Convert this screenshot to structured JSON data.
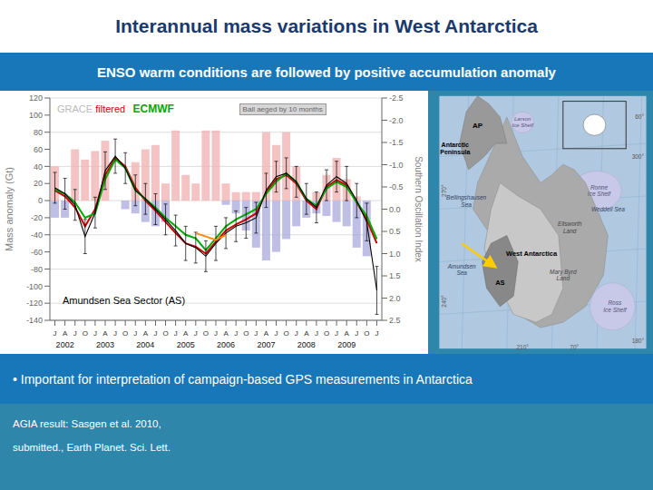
{
  "chart_data": {
    "type": "bar",
    "title": "Interannual mass variations in West Antarctica",
    "subtitle": "ENSO warm conditions are followed by positive accumulation anomaly",
    "bullet_text": "• Important for interpretation of campaign-based GPS measurements in Antarctica",
    "footer": [
      "AGIA result: Sasgen et al. 2010,",
      "submitted., Earth Planet. Sci. Lett."
    ],
    "ylabel": "Mass anomaly (Gt)",
    "y2label": "Southern Oscillation Index",
    "categories": [
      "J",
      "A",
      "J",
      "O",
      "J",
      "A",
      "J",
      "O",
      "J",
      "A",
      "J",
      "O",
      "J",
      "A",
      "J",
      "O",
      "J",
      "A",
      "J",
      "O",
      "J",
      "A",
      "J",
      "O",
      "J",
      "A",
      "J",
      "O",
      "J",
      "A",
      "J",
      "O",
      "J"
    ],
    "category_groups": [
      null,
      "2002",
      null,
      null,
      null,
      "2003",
      null,
      null,
      null,
      "2004",
      null,
      null,
      null,
      "2005",
      null,
      null,
      null,
      "2006",
      null,
      null,
      null,
      "2007",
      null,
      null,
      null,
      "2008",
      null,
      null,
      null,
      "2009",
      null,
      null,
      null
    ],
    "series": [
      {
        "type": "bar",
        "color": "#aaaadd",
        "values": [
          -20,
          -20,
          0,
          0,
          0,
          0,
          0,
          -10,
          -15,
          -25,
          -30,
          -25,
          0,
          0,
          0,
          0,
          0,
          -5,
          -15,
          -35,
          -55,
          -70,
          -60,
          -45,
          -30,
          -20,
          -15,
          -18,
          -25,
          -30,
          -55,
          -65,
          0
        ]
      },
      {
        "type": "bar",
        "color": "#f0b0b0",
        "values": [
          40,
          0,
          60,
          48,
          58,
          70,
          0,
          0,
          45,
          60,
          65,
          20,
          82,
          30,
          20,
          82,
          82,
          20,
          10,
          10,
          10,
          80,
          65,
          80,
          40,
          0,
          10,
          30,
          50,
          25,
          5,
          0,
          0
        ]
      },
      {
        "type": "line",
        "color": "#cc0000",
        "values": [
          12,
          5,
          -8,
          -30,
          -10,
          30,
          50,
          40,
          15,
          0,
          -12,
          -25,
          -38,
          -50,
          -54,
          -62,
          -48,
          -35,
          -28,
          -22,
          -15,
          10,
          25,
          30,
          20,
          0,
          -10,
          16,
          24,
          18,
          -2,
          -22,
          -50
        ]
      },
      {
        "type": "line",
        "color": "#00aa00",
        "values": [
          13,
          8,
          -2,
          -20,
          -15,
          25,
          48,
          38,
          12,
          2,
          -8,
          -20,
          -30,
          -40,
          -44,
          -58,
          -44,
          -30,
          -22,
          -16,
          -10,
          8,
          22,
          32,
          22,
          2,
          -6,
          14,
          22,
          16,
          -2,
          -18,
          -45
        ]
      },
      {
        "type": "line",
        "color": "#000000",
        "values": [
          15,
          8,
          -5,
          -42,
          -14,
          35,
          52,
          38,
          12,
          2,
          -10,
          -22,
          -35,
          -50,
          -55,
          -65,
          -50,
          -38,
          -30,
          -26,
          -20,
          12,
          28,
          32,
          22,
          2,
          -8,
          18,
          28,
          20,
          0,
          -25,
          -105
        ],
        "errors": [
          18,
          18,
          18,
          20,
          18,
          22,
          20,
          18,
          18,
          18,
          18,
          18,
          18,
          20,
          18,
          18,
          20,
          18,
          18,
          18,
          18,
          20,
          18,
          18,
          18,
          18,
          18,
          18,
          18,
          20,
          20,
          22,
          28
        ]
      },
      {
        "type": "line",
        "color": "#ff8800",
        "values": [
          null,
          null,
          null,
          null,
          null,
          null,
          null,
          null,
          null,
          null,
          null,
          null,
          null,
          null,
          -38,
          -42,
          -46,
          -40,
          null,
          null,
          null,
          null,
          null,
          null,
          null,
          null,
          null,
          null,
          null,
          null,
          null,
          null,
          null
        ]
      }
    ],
    "ylim": [
      -140,
      120
    ],
    "yticks": [
      -140,
      -120,
      -100,
      -80,
      -60,
      -40,
      -20,
      0,
      20,
      40,
      60,
      80,
      100,
      120
    ],
    "y2lim": [
      2.5,
      -2.5
    ],
    "y2ticks": [
      2.5,
      {
        "value": 2.0,
        "label": "2.0"
      },
      1.5,
      {
        "value": 1.0,
        "label": "1.0"
      },
      0.5,
      {
        "value": 0.0,
        "label": "0.0"
      },
      -0.5,
      {
        "value": -1.0,
        "label": "-1.0"
      },
      -1.5,
      {
        "value": -2.0,
        "label": "-2.0"
      },
      -2.5
    ],
    "grid": true,
    "annotations": [
      {
        "text": "GRACE",
        "color": "#bbbbbb"
      },
      {
        "text": " filtered",
        "color": "#cc0000"
      },
      {
        "text": "ECMWF",
        "color": "#00aa00"
      },
      {
        "text": "Ball aeged by 10 months"
      },
      {
        "text": "Amundsen Sea Sector (AS)"
      }
    ],
    "map_labels": [
      "Ronne\nIce Shelf",
      "Ross\nIce Shelf",
      "Larson\nIce Shelf",
      "Antarctic\nPeninsula",
      "West Antarctica",
      "AP",
      "AS",
      "Bellingshausen\nSea",
      "Amundsen\nSea",
      "Ellsworth\nLand",
      "Mary Byrd\nLand",
      "Weddell Sea",
      "300°",
      "60°",
      "180°",
      "270°",
      "240°",
      "210°",
      "70°"
    ]
  }
}
